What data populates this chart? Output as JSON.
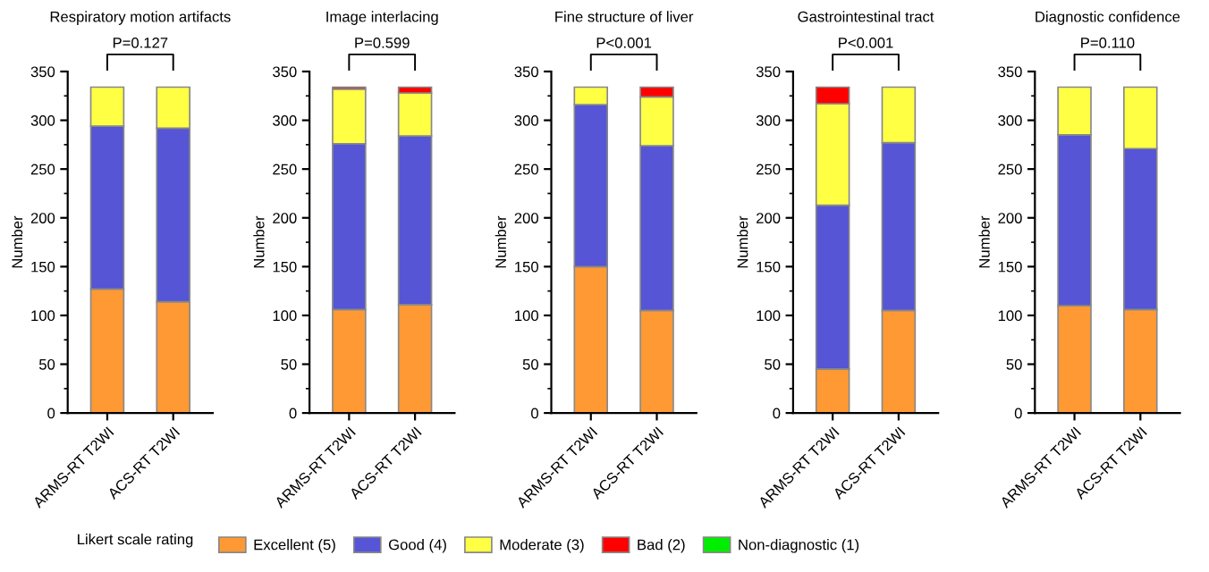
{
  "chart_data": [
    {
      "type": "bar",
      "stacked": true,
      "title": "Respiratory motion artifacts",
      "ylabel": "Number",
      "categories": [
        "ARMS-RT T2WI",
        "ACS-RT T2WI"
      ],
      "annotations": [
        "P=0.127"
      ],
      "ylim": [
        0,
        350
      ],
      "yticks": [
        0,
        50,
        100,
        150,
        200,
        250,
        300,
        350
      ],
      "grid": false,
      "legend": "bottom",
      "legend_title": "Likert scale rating",
      "series": [
        {
          "name": "Excellent (5)",
          "color": "#ff9933",
          "values": [
            127,
            114
          ]
        },
        {
          "name": "Good (4)",
          "color": "#5555d5",
          "values": [
            167,
            178
          ]
        },
        {
          "name": "Moderate (3)",
          "color": "#ffff44",
          "values": [
            40,
            42
          ]
        },
        {
          "name": "Bad (2)",
          "color": "#ff0000",
          "values": [
            null,
            null
          ]
        },
        {
          "name": "Non-diagnostic (1)",
          "color": "#00ee00",
          "values": [
            null,
            null
          ]
        }
      ]
    },
    {
      "type": "bar",
      "stacked": true,
      "title": "Image interlacing",
      "ylabel": "Number",
      "categories": [
        "ARMS-RT T2WI",
        "ACS-RT T2WI"
      ],
      "annotations": [
        "P=0.599"
      ],
      "ylim": [
        0,
        350
      ],
      "yticks": [
        0,
        50,
        100,
        150,
        200,
        250,
        300,
        350
      ],
      "grid": false,
      "series": [
        {
          "color": "#ff9933",
          "values": [
            106,
            111
          ]
        },
        {
          "color": "#5555d5",
          "values": [
            170,
            173
          ]
        },
        {
          "color": "#ffff44",
          "values": [
            56,
            44
          ]
        },
        {
          "color": "#ff0000",
          "values": [
            2,
            6
          ]
        }
      ]
    },
    {
      "type": "bar",
      "stacked": true,
      "title": "Fine structure of liver",
      "ylabel": "Number",
      "categories": [
        "ARMS-RT T2WI",
        "ACS-RT T2WI"
      ],
      "annotations": [
        "P<0.001"
      ],
      "ylim": [
        0,
        350
      ],
      "yticks": [
        0,
        50,
        100,
        150,
        200,
        250,
        300,
        350
      ],
      "grid": false,
      "series": [
        {
          "color": "#ff9933",
          "values": [
            150,
            105
          ]
        },
        {
          "color": "#5555d5",
          "values": [
            166,
            169
          ]
        },
        {
          "color": "#ffff44",
          "values": [
            18,
            50
          ]
        },
        {
          "color": "#ff0000",
          "values": [
            null,
            10
          ]
        }
      ]
    },
    {
      "type": "bar",
      "stacked": true,
      "title": "Gastrointestinal tract",
      "ylabel": "Number",
      "categories": [
        "ARMS-RT T2WI",
        "ACS-RT T2WI"
      ],
      "annotations": [
        "P<0.001"
      ],
      "ylim": [
        0,
        350
      ],
      "yticks": [
        0,
        50,
        100,
        150,
        200,
        250,
        300,
        350
      ],
      "grid": false,
      "series": [
        {
          "color": "#ff9933",
          "values": [
            45,
            105
          ]
        },
        {
          "color": "#5555d5",
          "values": [
            168,
            172
          ]
        },
        {
          "color": "#ffff44",
          "values": [
            104,
            57
          ]
        },
        {
          "color": "#ff0000",
          "values": [
            17,
            null
          ]
        }
      ]
    },
    {
      "type": "bar",
      "stacked": true,
      "title": "Diagnostic confidence",
      "ylabel": "Number",
      "categories": [
        "ARMS-RT T2WI",
        "ACS-RT T2WI"
      ],
      "annotations": [
        "P=0.110"
      ],
      "ylim": [
        0,
        350
      ],
      "yticks": [
        0,
        50,
        100,
        150,
        200,
        250,
        300,
        350
      ],
      "grid": false,
      "series": [
        {
          "color": "#ff9933",
          "values": [
            110,
            106
          ]
        },
        {
          "color": "#5555d5",
          "values": [
            175,
            165
          ]
        },
        {
          "color": "#ffff44",
          "values": [
            49,
            63
          ]
        }
      ]
    }
  ]
}
